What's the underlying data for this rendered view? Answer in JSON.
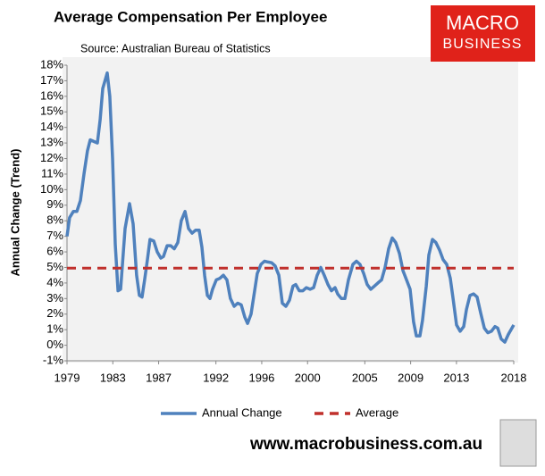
{
  "chart_data": {
    "type": "line",
    "title": "Average Compensation Per Employee",
    "subtitle": "Source: Australian Bureau of Statistics",
    "ylabel": "Annual Change (Trend)",
    "logo": [
      "MACRO",
      "BUSINESS"
    ],
    "footer": "www.macrobusiness.com.au",
    "xlim": [
      1979,
      2018
    ],
    "xticks": [
      1979,
      1983,
      1987,
      1992,
      1996,
      2000,
      2005,
      2009,
      2013,
      2018
    ],
    "ylim": [
      -1,
      18
    ],
    "yticks": [
      {
        "value": -1,
        "label": "-1%"
      },
      {
        "value": 0,
        "label": "0%"
      },
      {
        "value": 1,
        "label": "1%"
      },
      {
        "value": 2,
        "label": "2%"
      },
      {
        "value": 3,
        "label": "3%"
      },
      {
        "value": 4,
        "label": "4%"
      },
      {
        "value": 5,
        "label": "5%"
      },
      {
        "value": 6,
        "label": "6%"
      },
      {
        "value": 7,
        "label": "7%"
      },
      {
        "value": 8,
        "label": "8%"
      },
      {
        "value": 9,
        "label": "9%"
      },
      {
        "value": 10,
        "label": "10%"
      },
      {
        "value": 11,
        "label": "11%"
      },
      {
        "value": 12,
        "label": "12%"
      },
      {
        "value": 13,
        "label": "13%"
      },
      {
        "value": 14,
        "label": "14%"
      },
      {
        "value": 15,
        "label": "15%"
      },
      {
        "value": 16,
        "label": "16%"
      },
      {
        "value": 17,
        "label": "17%"
      },
      {
        "value": 18,
        "label": "18%"
      }
    ],
    "series": [
      {
        "name": "Annual Change",
        "color": "#4f81bd",
        "dashed": false,
        "x": [
          1979.0,
          1979.23,
          1979.55,
          1979.86,
          1980.17,
          1980.48,
          1980.79,
          1981.03,
          1981.34,
          1981.65,
          1981.89,
          1982.12,
          1982.51,
          1982.74,
          1982.98,
          1983.21,
          1983.45,
          1983.68,
          1984.07,
          1984.46,
          1984.77,
          1985.08,
          1985.32,
          1985.55,
          1985.79,
          1986.02,
          1986.25,
          1986.57,
          1986.88,
          1987.19,
          1987.42,
          1987.74,
          1988.05,
          1988.36,
          1988.67,
          1988.98,
          1989.3,
          1989.61,
          1989.92,
          1990.23,
          1990.54,
          1990.78,
          1991.01,
          1991.25,
          1991.48,
          1991.71,
          1992.03,
          1992.34,
          1992.65,
          1992.96,
          1993.27,
          1993.59,
          1993.9,
          1994.21,
          1994.52,
          1994.76,
          1995.07,
          1995.38,
          1995.61,
          1995.93,
          1996.24,
          1996.55,
          1996.86,
          1997.17,
          1997.49,
          1997.8,
          1998.11,
          1998.42,
          1998.73,
          1998.97,
          1999.28,
          1999.59,
          1999.9,
          2000.22,
          2000.53,
          2000.84,
          2001.15,
          2001.46,
          2001.78,
          2002.09,
          2002.4,
          2002.63,
          2002.95,
          2003.26,
          2003.57,
          2003.96,
          2004.27,
          2004.58,
          2004.9,
          2005.21,
          2005.52,
          2005.83,
          2006.14,
          2006.46,
          2006.77,
          2007.08,
          2007.39,
          2007.7,
          2008.02,
          2008.33,
          2008.64,
          2008.95,
          2009.26,
          2009.5,
          2009.81,
          2010.04,
          2010.36,
          2010.59,
          2010.9,
          2011.21,
          2011.53,
          2011.84,
          2012.15,
          2012.46,
          2012.7,
          2013.01,
          2013.32,
          2013.63,
          2013.87,
          2014.18,
          2014.49,
          2014.8,
          2015.11,
          2015.43,
          2015.74,
          2016.05,
          2016.36,
          2016.6,
          2016.91,
          2017.22,
          2017.53,
          2018.0
        ],
        "values": [
          7.0,
          8.2,
          8.6,
          8.6,
          9.3,
          11,
          12.5,
          13.2,
          13.1,
          13.0,
          14.5,
          16.5,
          17.5,
          16,
          12,
          6.5,
          3.5,
          3.6,
          7.5,
          9.1,
          7.8,
          4.5,
          3.2,
          3.1,
          4.3,
          5.5,
          6.8,
          6.7,
          6.0,
          5.6,
          5.7,
          6.4,
          6.4,
          6.2,
          6.6,
          8.0,
          8.6,
          7.5,
          7.2,
          7.4,
          7.4,
          6.3,
          4.5,
          3.2,
          3.0,
          3.6,
          4.2,
          4.3,
          4.5,
          4.2,
          3.0,
          2.5,
          2.7,
          2.6,
          1.8,
          1.4,
          2.0,
          3.5,
          4.6,
          5.2,
          5.4,
          5.35,
          5.3,
          5.1,
          4.5,
          2.7,
          2.5,
          2.9,
          3.8,
          3.9,
          3.5,
          3.5,
          3.7,
          3.6,
          3.7,
          4.5,
          5.0,
          4.5,
          3.9,
          3.5,
          3.7,
          3.3,
          3.0,
          3.0,
          4.2,
          5.2,
          5.4,
          5.2,
          4.6,
          3.9,
          3.6,
          3.8,
          4.0,
          4.2,
          5.0,
          6.2,
          6.9,
          6.6,
          5.9,
          4.8,
          4.2,
          3.6,
          1.5,
          0.6,
          0.6,
          1.6,
          3.8,
          5.8,
          6.8,
          6.6,
          6.1,
          5.5,
          5.2,
          4.3,
          3.0,
          1.3,
          0.9,
          1.2,
          2.3,
          3.2,
          3.3,
          3.1,
          2.1,
          1.1,
          0.8,
          0.9,
          1.2,
          1.1,
          0.4,
          0.2,
          0.7,
          1.3
        ]
      },
      {
        "name": "Average",
        "color": "#c0302c",
        "dashed": true,
        "x": [
          1979,
          2018
        ],
        "values": [
          4.95,
          4.95
        ]
      }
    ]
  }
}
